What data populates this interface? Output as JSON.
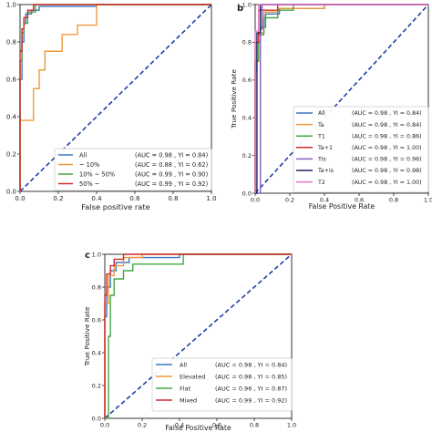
{
  "chart_data": [
    {
      "type": "line",
      "panel_label": "",
      "title": "",
      "xlabel": "False positive rate",
      "ylabel": "",
      "xlim": [
        0,
        1
      ],
      "ylim": [
        0,
        1
      ],
      "xticks": [
        "0.0",
        "0.2",
        "0.4",
        "0.6",
        "0.8",
        "1.0"
      ],
      "yticks": [
        "0.0",
        "0.2",
        "0.4",
        "0.6",
        "0.8",
        "1.0"
      ],
      "grid": false,
      "legend_placement": "lower-right",
      "diagonal": {
        "x": [
          0,
          1
        ],
        "y": [
          0,
          1
        ],
        "color": "#1f3fa8"
      },
      "series": [
        {
          "name": "All",
          "metrics": "(AUC = 0.98 , YI = 0.84)",
          "color": "#3a78c0",
          "x": [
            0,
            0,
            0.01,
            0.01,
            0.02,
            0.02,
            0.03,
            0.03,
            0.06,
            0.06,
            0.1,
            0.1,
            0.4,
            0.4,
            1
          ],
          "y": [
            0,
            0.6,
            0.6,
            0.8,
            0.8,
            0.9,
            0.9,
            0.95,
            0.95,
            0.97,
            0.97,
            0.99,
            0.99,
            1.0,
            1.0
          ]
        },
        {
          "name": "~ 10%",
          "metrics": "(AUC = 0.88 , YI = 0.62)",
          "color": "#f09a3a",
          "x": [
            0,
            0,
            0.07,
            0.07,
            0.1,
            0.1,
            0.13,
            0.13,
            0.22,
            0.22,
            0.3,
            0.3,
            0.4,
            0.4,
            1
          ],
          "y": [
            0,
            0.38,
            0.38,
            0.55,
            0.55,
            0.65,
            0.65,
            0.75,
            0.75,
            0.84,
            0.84,
            0.89,
            0.89,
            1.0,
            1.0
          ]
        },
        {
          "name": "10% ~ 50%",
          "metrics": "(AUC = 0.99 , YI = 0.90)",
          "color": "#46a646",
          "x": [
            0,
            0,
            0.01,
            0.01,
            0.02,
            0.02,
            0.04,
            0.04,
            0.08,
            0.08,
            1
          ],
          "y": [
            0,
            0.7,
            0.7,
            0.85,
            0.85,
            0.9,
            0.9,
            0.96,
            0.96,
            1.0,
            1.0
          ]
        },
        {
          "name": "50% ~",
          "metrics": "(AUC = 0.99 , YI = 0.92)",
          "color": "#d02a2a",
          "x": [
            0,
            0,
            0.01,
            0.01,
            0.02,
            0.02,
            0.04,
            0.04,
            0.07,
            0.07,
            1
          ],
          "y": [
            0,
            0.75,
            0.75,
            0.87,
            0.87,
            0.93,
            0.93,
            0.97,
            0.97,
            1.0,
            1.0
          ]
        }
      ]
    },
    {
      "type": "line",
      "panel_label": "b",
      "title": "",
      "xlabel": "False Positive Rate",
      "ylabel": "True Positive Rate",
      "xlim": [
        0,
        1
      ],
      "ylim": [
        0,
        1
      ],
      "xticks": [
        "0.0",
        "0.2",
        "0.4",
        "0.6",
        "0.8",
        "1.0"
      ],
      "yticks": [
        "0.0",
        "0.2",
        "0.4",
        "0.6",
        "0.8",
        "1.0"
      ],
      "grid": false,
      "legend_placement": "lower-right",
      "diagonal": {
        "x": [
          0,
          1
        ],
        "y": [
          0,
          1
        ],
        "color": "#1f3fa8"
      },
      "series": [
        {
          "name": "All",
          "metrics": "(AUC = 0.98 ,    YI = 0.84)",
          "color": "#3a78c0",
          "x": [
            0,
            0,
            0.01,
            0.01,
            0.03,
            0.03,
            0.06,
            0.06,
            0.14,
            0.14,
            0.4,
            0.4,
            1
          ],
          "y": [
            0,
            0.65,
            0.65,
            0.8,
            0.8,
            0.88,
            0.88,
            0.95,
            0.95,
            0.98,
            0.98,
            1.0,
            1.0
          ]
        },
        {
          "name": "Ta",
          "metrics": "(AUC = 0.98 ,    YI = 0.84)",
          "color": "#f09a3a",
          "x": [
            0,
            0,
            0.02,
            0.02,
            0.05,
            0.05,
            0.13,
            0.13,
            0.4,
            0.4,
            1
          ],
          "y": [
            0,
            0.7,
            0.7,
            0.85,
            0.85,
            0.96,
            0.96,
            0.98,
            0.98,
            1.0,
            1.0
          ]
        },
        {
          "name": "T1",
          "metrics": "(AUC = 0.98 ,    YI = 0.86)",
          "color": "#46a646",
          "x": [
            0,
            0,
            0.02,
            0.02,
            0.05,
            0.05,
            0.13,
            0.13,
            0.22,
            0.22,
            1
          ],
          "y": [
            0,
            0.7,
            0.7,
            0.84,
            0.84,
            0.93,
            0.93,
            0.97,
            0.97,
            1.0,
            1.0
          ]
        },
        {
          "name": "Ta+1",
          "metrics": "(AUC = 0.98 ,    YI = 1.00)",
          "color": "#d02a2a",
          "x": [
            0,
            0,
            0.02,
            0.02,
            0.13,
            0.13,
            1
          ],
          "y": [
            0,
            0.8,
            0.8,
            0.97,
            0.97,
            1.0,
            1.0
          ]
        },
        {
          "name": "Tis",
          "metrics": "(AUC = 0.98 ,    YI = 0.96)",
          "color": "#8c5fc1",
          "x": [
            0,
            0.03,
            0.03,
            0.04,
            0.04,
            1
          ],
          "y": [
            0,
            0,
            0.87,
            0.87,
            1.0,
            1.0
          ]
        },
        {
          "name": "Ta+is",
          "metrics": "(AUC = 0.98 ,    YI = 0.98)",
          "color": "#222266",
          "x": [
            0,
            0.01,
            0.01,
            0.03,
            0.03,
            1
          ],
          "y": [
            0,
            0,
            0.85,
            0.85,
            1.0,
            1.0
          ]
        },
        {
          "name": "T2",
          "metrics": "(AUC = 0.98 ,    YI = 1.00)",
          "color": "#e377c2",
          "x": [
            0,
            0,
            0.02,
            0.02,
            1
          ],
          "y": [
            0,
            0.86,
            0.86,
            1.0,
            1.0
          ]
        }
      ]
    },
    {
      "type": "line",
      "panel_label": "c",
      "title": "",
      "xlabel": "False Positive Rate",
      "ylabel": "True Positive Rate",
      "xlim": [
        0,
        1
      ],
      "ylim": [
        0,
        1
      ],
      "xticks": [
        "0.0",
        "0.2",
        "0.4",
        "0.6",
        "0.8",
        "1.0"
      ],
      "yticks": [
        "0.0",
        "0.2",
        "0.4",
        "0.6",
        "0.8",
        "1.0"
      ],
      "grid": false,
      "legend_placement": "lower-right",
      "diagonal": {
        "x": [
          0,
          1
        ],
        "y": [
          0,
          1
        ],
        "color": "#1f3fa8"
      },
      "series": [
        {
          "name": "All",
          "metrics": "(AUC = 0.98 ,    YI = 0.84)",
          "color": "#3a78c0",
          "x": [
            0,
            0,
            0.01,
            0.01,
            0.03,
            0.03,
            0.06,
            0.06,
            0.13,
            0.13,
            0.4,
            0.4,
            1
          ],
          "y": [
            0,
            0.62,
            0.62,
            0.8,
            0.8,
            0.9,
            0.9,
            0.95,
            0.95,
            0.98,
            0.98,
            1.0,
            1.0
          ]
        },
        {
          "name": "Elevated",
          "metrics": "(AUC = 0.98 ,    YI = 0.85)",
          "color": "#f09a3a",
          "x": [
            0,
            0,
            0.02,
            0.02,
            0.05,
            0.05,
            0.1,
            0.1,
            0.2,
            0.2,
            1
          ],
          "y": [
            0,
            0.7,
            0.7,
            0.87,
            0.87,
            0.93,
            0.93,
            0.98,
            0.98,
            1.0,
            1.0
          ]
        },
        {
          "name": "Flat",
          "metrics": "(AUC = 0.96 ,    YI = 0.87)",
          "color": "#46a646",
          "x": [
            0,
            0.02,
            0.02,
            0.03,
            0.03,
            0.05,
            0.05,
            0.1,
            0.1,
            0.15,
            0.15,
            0.42,
            0.42,
            1
          ],
          "y": [
            0,
            0,
            0.5,
            0.5,
            0.75,
            0.75,
            0.85,
            0.85,
            0.9,
            0.9,
            0.94,
            0.94,
            1.0,
            1.0
          ]
        },
        {
          "name": "Mixed",
          "metrics": "(AUC = 0.99 ,    YI = 0.92)",
          "color": "#d02a2a",
          "x": [
            0,
            0,
            0.01,
            0.01,
            0.03,
            0.03,
            0.05,
            0.05,
            0.1,
            0.1,
            1
          ],
          "y": [
            0,
            0.75,
            0.75,
            0.88,
            0.88,
            0.93,
            0.93,
            0.97,
            0.97,
            1.0,
            1.0
          ]
        }
      ]
    }
  ]
}
